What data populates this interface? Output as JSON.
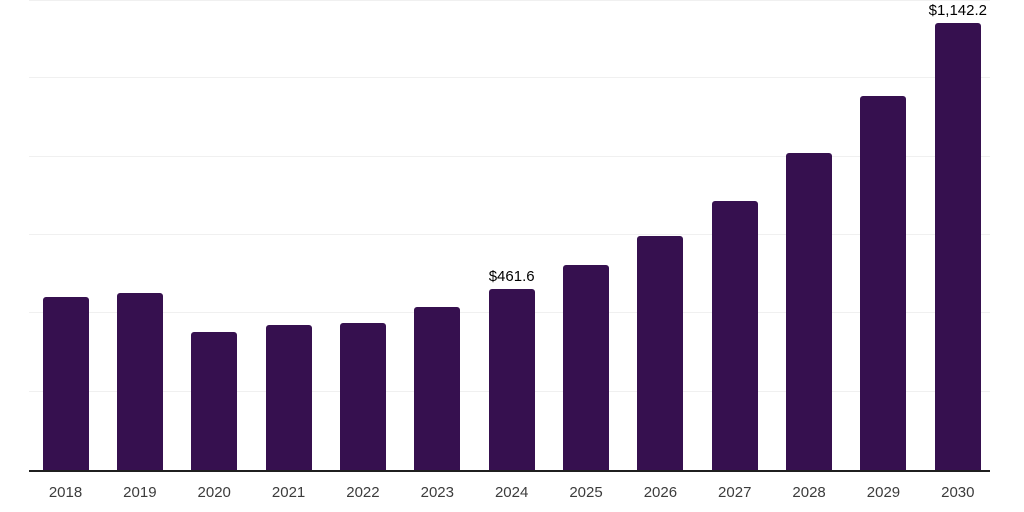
{
  "chart": {
    "bar_color": "#36104F",
    "gridline_color": "#F0F0F0",
    "axis_line_color": "#1F1F1F",
    "tick_label_color": "#3C3C3C",
    "value_label_color": "#000000"
  },
  "chart_data": {
    "type": "bar",
    "title": "",
    "xlabel": "",
    "ylabel": "",
    "categories": [
      "2018",
      "2019",
      "2020",
      "2021",
      "2022",
      "2023",
      "2024",
      "2025",
      "2026",
      "2027",
      "2028",
      "2029",
      "2030"
    ],
    "values": [
      441,
      453,
      353,
      369,
      375,
      416,
      461.6,
      524,
      597,
      688,
      810,
      954,
      1142.2
    ],
    "data_labels": [
      {
        "category": "2024",
        "text": "$461.6"
      },
      {
        "category": "2030",
        "text": "$1,142.2"
      }
    ],
    "ylim": [
      0,
      1200
    ],
    "gridline_step": 200,
    "grid": true,
    "legend": false,
    "y_axis_labels_visible": false
  }
}
